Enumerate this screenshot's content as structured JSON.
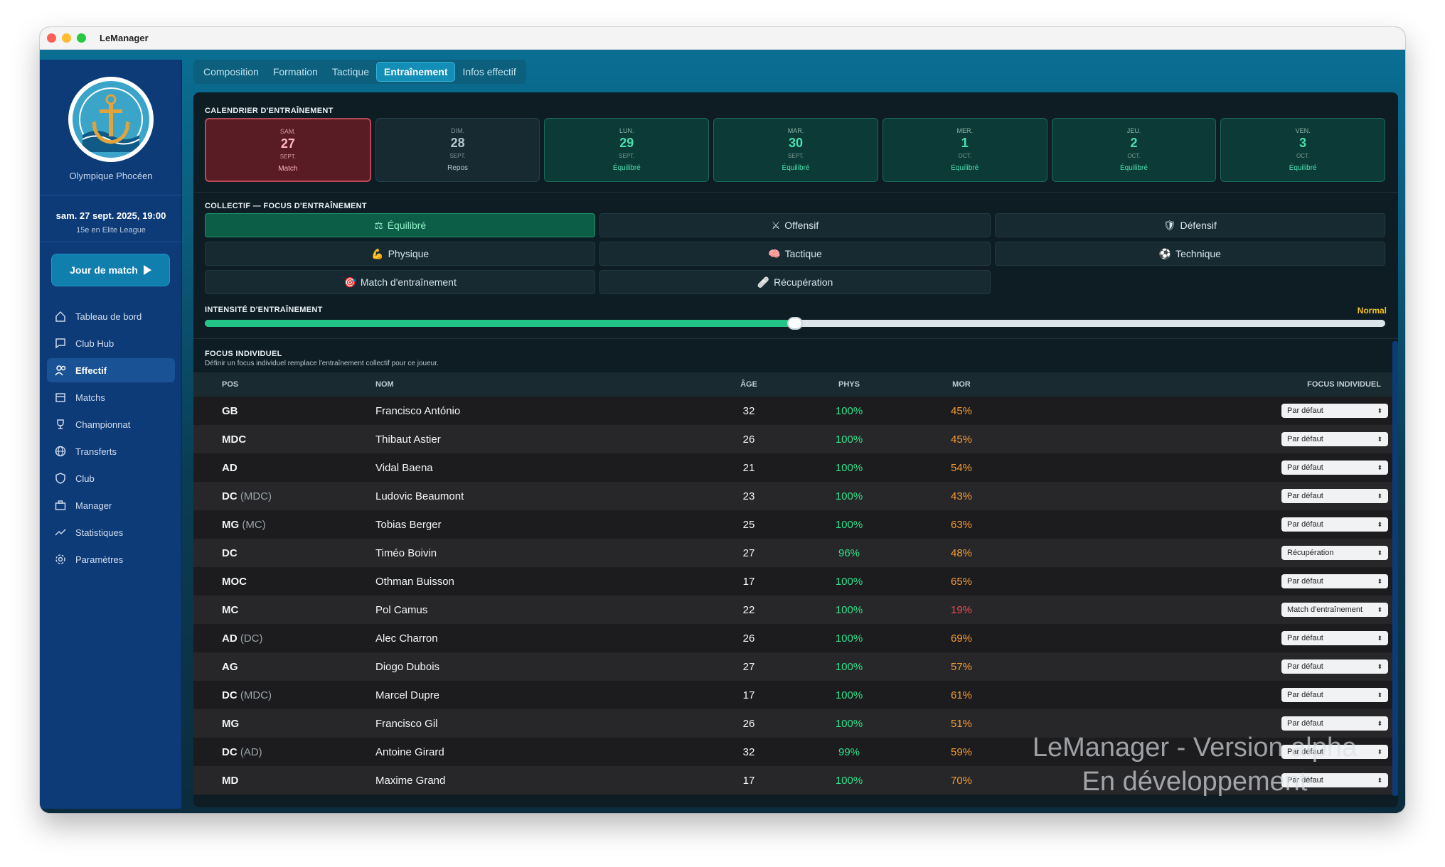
{
  "window": {
    "title": "LeManager"
  },
  "sidebar": {
    "club_name": "Olympique Phocéen",
    "datetime": "sam. 27 sept. 2025, 19:00",
    "rank": "15e en Elite League",
    "match_button": "Jour de match",
    "items": [
      {
        "label": "Tableau de bord",
        "icon": "home-icon"
      },
      {
        "label": "Club Hub",
        "icon": "chat-icon"
      },
      {
        "label": "Effectif",
        "icon": "users-icon",
        "active": true
      },
      {
        "label": "Matchs",
        "icon": "calendar-icon"
      },
      {
        "label": "Championnat",
        "icon": "trophy-icon"
      },
      {
        "label": "Transferts",
        "icon": "globe-icon"
      },
      {
        "label": "Club",
        "icon": "shield-icon"
      },
      {
        "label": "Manager",
        "icon": "briefcase-icon"
      },
      {
        "label": "Statistiques",
        "icon": "trend-icon"
      },
      {
        "label": "Paramètres",
        "icon": "gear-icon"
      }
    ]
  },
  "tabs": [
    {
      "label": "Composition"
    },
    {
      "label": "Formation"
    },
    {
      "label": "Tactique"
    },
    {
      "label": "Entraînement",
      "active": true
    },
    {
      "label": "Infos effectif"
    }
  ],
  "calendar": {
    "title": "CALENDRIER D'ENTRAÎNEMENT",
    "days": [
      {
        "name": "SAM.",
        "num": "27",
        "month": "SEPT.",
        "label": "Match",
        "type": "match"
      },
      {
        "name": "DIM.",
        "num": "28",
        "month": "SEPT.",
        "label": "Repos",
        "type": "rest"
      },
      {
        "name": "LUN.",
        "num": "29",
        "month": "SEPT.",
        "label": "Équilibré",
        "type": "training"
      },
      {
        "name": "MAR.",
        "num": "30",
        "month": "SEPT.",
        "label": "Équilibré",
        "type": "training"
      },
      {
        "name": "MER.",
        "num": "1",
        "month": "OCT.",
        "label": "Équilibré",
        "type": "training"
      },
      {
        "name": "JEU.",
        "num": "2",
        "month": "OCT.",
        "label": "Équilibré",
        "type": "training"
      },
      {
        "name": "VEN.",
        "num": "3",
        "month": "OCT.",
        "label": "Équilibré",
        "type": "training"
      }
    ]
  },
  "collective": {
    "title": "COLLECTIF — FOCUS D'ENTRAÎNEMENT",
    "options": [
      {
        "label": "Équilibré",
        "icon": "⚖",
        "active": true
      },
      {
        "label": "Offensif",
        "icon": "⚔"
      },
      {
        "label": "Défensif",
        "icon": "🛡"
      },
      {
        "label": "Physique",
        "icon": "💪"
      },
      {
        "label": "Tactique",
        "icon": "🧠"
      },
      {
        "label": "Technique",
        "icon": "⚽"
      },
      {
        "label": "Match d'entraînement",
        "icon": "🎯"
      },
      {
        "label": "Récupération",
        "icon": "🩹"
      }
    ]
  },
  "intensity": {
    "title": "INTENSITÉ D'ENTRAÎNEMENT",
    "value_label": "Normal",
    "level": 0.5,
    "fill_color": "#23c488"
  },
  "individual": {
    "title": "FOCUS INDIVIDUEL",
    "subtitle": "Définir un focus individuel remplace l'entraînement collectif pour ce joueur.",
    "headers": {
      "pos": "POS",
      "nom": "NOM",
      "age": "ÂGE",
      "phys": "PHYS",
      "mor": "MOR",
      "focus": "FOCUS INDIVIDUEL"
    },
    "players": [
      {
        "pos": "GB",
        "alt": "",
        "nom": "Francisco António",
        "age": "32",
        "phys": "100%",
        "mor": "45%",
        "focus": "Par défaut"
      },
      {
        "pos": "MDC",
        "alt": "",
        "nom": "Thibaut Astier",
        "age": "26",
        "phys": "100%",
        "mor": "45%",
        "focus": "Par défaut"
      },
      {
        "pos": "AD",
        "alt": "",
        "nom": "Vidal Baena",
        "age": "21",
        "phys": "100%",
        "mor": "54%",
        "focus": "Par défaut"
      },
      {
        "pos": "DC",
        "alt": "(MDC)",
        "nom": "Ludovic Beaumont",
        "age": "23",
        "phys": "100%",
        "mor": "43%",
        "focus": "Par défaut"
      },
      {
        "pos": "MG",
        "alt": "(MC)",
        "nom": "Tobias Berger",
        "age": "25",
        "phys": "100%",
        "mor": "63%",
        "focus": "Par défaut"
      },
      {
        "pos": "DC",
        "alt": "",
        "nom": "Timéo Boivin",
        "age": "27",
        "phys": "96%",
        "mor": "48%",
        "focus": "Récupération"
      },
      {
        "pos": "MOC",
        "alt": "",
        "nom": "Othman Buisson",
        "age": "17",
        "phys": "100%",
        "mor": "65%",
        "focus": "Par défaut"
      },
      {
        "pos": "MC",
        "alt": "",
        "nom": "Pol Camus",
        "age": "22",
        "phys": "100%",
        "mor": "19%",
        "focus": "Match d'entraînement"
      },
      {
        "pos": "AD",
        "alt": "(DC)",
        "nom": "Alec Charron",
        "age": "26",
        "phys": "100%",
        "mor": "69%",
        "focus": "Par défaut"
      },
      {
        "pos": "AG",
        "alt": "",
        "nom": "Diogo Dubois",
        "age": "27",
        "phys": "100%",
        "mor": "57%",
        "focus": "Par défaut"
      },
      {
        "pos": "DC",
        "alt": "(MDC)",
        "nom": "Marcel Dupre",
        "age": "17",
        "phys": "100%",
        "mor": "61%",
        "focus": "Par défaut"
      },
      {
        "pos": "MG",
        "alt": "",
        "nom": "Francisco Gil",
        "age": "26",
        "phys": "100%",
        "mor": "51%",
        "focus": "Par défaut"
      },
      {
        "pos": "DC",
        "alt": "(AD)",
        "nom": "Antoine Girard",
        "age": "32",
        "phys": "99%",
        "mor": "59%",
        "focus": "Par défaut"
      },
      {
        "pos": "MD",
        "alt": "",
        "nom": "Maxime Grand",
        "age": "17",
        "phys": "100%",
        "mor": "70%",
        "focus": "Par défaut"
      }
    ]
  },
  "watermark": {
    "line1": "LeManager - Version alpha",
    "line2": "En développement"
  },
  "colors": {
    "accent": "#138eb7",
    "sidebar": "#0d3b78",
    "positive": "#2fe08a",
    "warning": "#f39a34",
    "danger": "#ef4a55"
  }
}
